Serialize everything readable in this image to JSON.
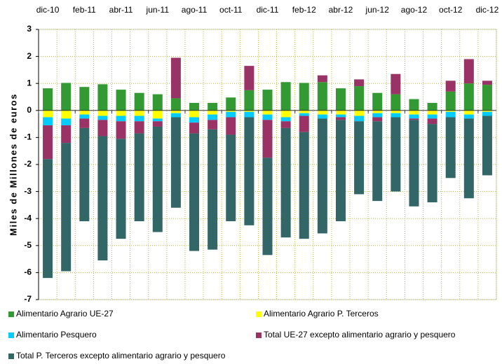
{
  "chart_data": {
    "type": "bar",
    "stacked": true,
    "y_label": "Miles de Millones de euros",
    "categories": [
      "dic-10",
      null,
      "feb-11",
      null,
      "abr-11",
      null,
      "jun-11",
      null,
      "ago-11",
      null,
      "oct-11",
      null,
      "dic-11",
      null,
      "feb-12",
      null,
      "abr-12",
      null,
      "jun-12",
      null,
      "ago-12",
      null,
      "oct-12",
      null,
      "dic-12"
    ],
    "series": [
      {
        "name": "Alimentario Agrario UE-27",
        "color": "#339933",
        "values": [
          0.82,
          1.02,
          0.87,
          0.97,
          0.77,
          0.65,
          0.6,
          0.45,
          0.28,
          0.28,
          0.48,
          0.75,
          0.77,
          1.05,
          1.02,
          1.05,
          0.82,
          0.9,
          0.65,
          0.6,
          0.42,
          0.28,
          0.7,
          1.0,
          0.95
        ]
      },
      {
        "name": "Alimentario Agrario P. Terceros",
        "color": "#ffff00",
        "values": [
          -0.25,
          -0.3,
          -0.15,
          -0.2,
          -0.2,
          -0.2,
          -0.3,
          -0.1,
          -0.25,
          -0.15,
          -0.05,
          -0.05,
          -0.15,
          -0.25,
          -0.1,
          -0.15,
          -0.15,
          -0.2,
          -0.1,
          -0.1,
          -0.15,
          -0.15,
          -0.05,
          -0.15,
          -0.05
        ]
      },
      {
        "name": "Alimentario Pesquero",
        "color": "#00ccff",
        "values": [
          -0.3,
          -0.25,
          -0.15,
          -0.15,
          -0.2,
          -0.2,
          -0.1,
          -0.15,
          -0.2,
          -0.2,
          -0.2,
          -0.2,
          -0.2,
          -0.15,
          -0.1,
          -0.15,
          -0.1,
          -0.2,
          -0.15,
          -0.15,
          -0.15,
          -0.15,
          -0.2,
          -0.15,
          -0.15
        ]
      },
      {
        "name": "Total UE-27 excepto alimentario agrario y pesquero",
        "color": "#993366",
        "values": [
          -1.25,
          -0.65,
          -0.35,
          -0.6,
          -0.65,
          -0.45,
          -0.2,
          1.5,
          -0.4,
          -0.35,
          -0.65,
          0.9,
          -1.4,
          -0.25,
          -0.6,
          0.25,
          -0.1,
          0.25,
          -0.15,
          0.75,
          -0.05,
          -0.2,
          0.4,
          0.9,
          0.15
        ]
      },
      {
        "name": "Total P. Terceros excepto alimentario agrario y pesquero",
        "color": "#336666",
        "values": [
          -4.4,
          -4.75,
          -3.45,
          -4.6,
          -3.7,
          -3.25,
          -3.9,
          -3.35,
          -4.35,
          -4.45,
          -3.2,
          -4.0,
          -3.6,
          -4.05,
          -3.95,
          -4.25,
          -3.75,
          -2.7,
          -2.95,
          -2.75,
          -3.2,
          -2.9,
          -2.25,
          -2.95,
          -2.2
        ]
      }
    ],
    "ylim": [
      -7,
      3
    ],
    "yticks": [
      3,
      2,
      1,
      0,
      -1,
      -2,
      -3,
      -4,
      -5,
      -6,
      -7
    ],
    "grid": true,
    "legend": "bottom"
  }
}
